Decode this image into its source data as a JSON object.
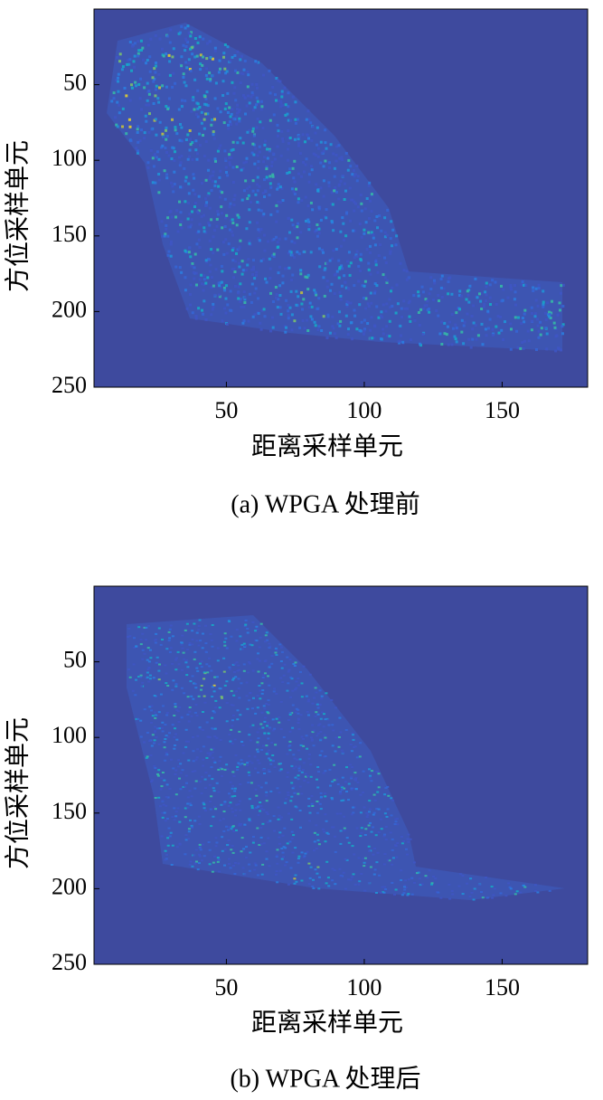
{
  "chart_data": [
    {
      "type": "heatmap",
      "caption": "(a) WPGA 处理前",
      "xlabel": "距离采样单元",
      "ylabel": "方位采样单元",
      "xlim": [
        2,
        181
      ],
      "ylim": [
        0,
        250
      ],
      "y_reversed": true,
      "xticks": [
        50,
        100,
        150
      ],
      "yticks": [
        50,
        100,
        150,
        200,
        250
      ]
    },
    {
      "type": "heatmap",
      "caption": "(b) WPGA 处理后",
      "xlabel": "距离采样单元",
      "ylabel": "方位采样单元",
      "xlim": [
        2,
        181
      ],
      "ylim": [
        0,
        250
      ],
      "y_reversed": true,
      "xticks": [
        50,
        100,
        150
      ],
      "yticks": [
        50,
        100,
        150,
        200,
        250
      ]
    }
  ]
}
